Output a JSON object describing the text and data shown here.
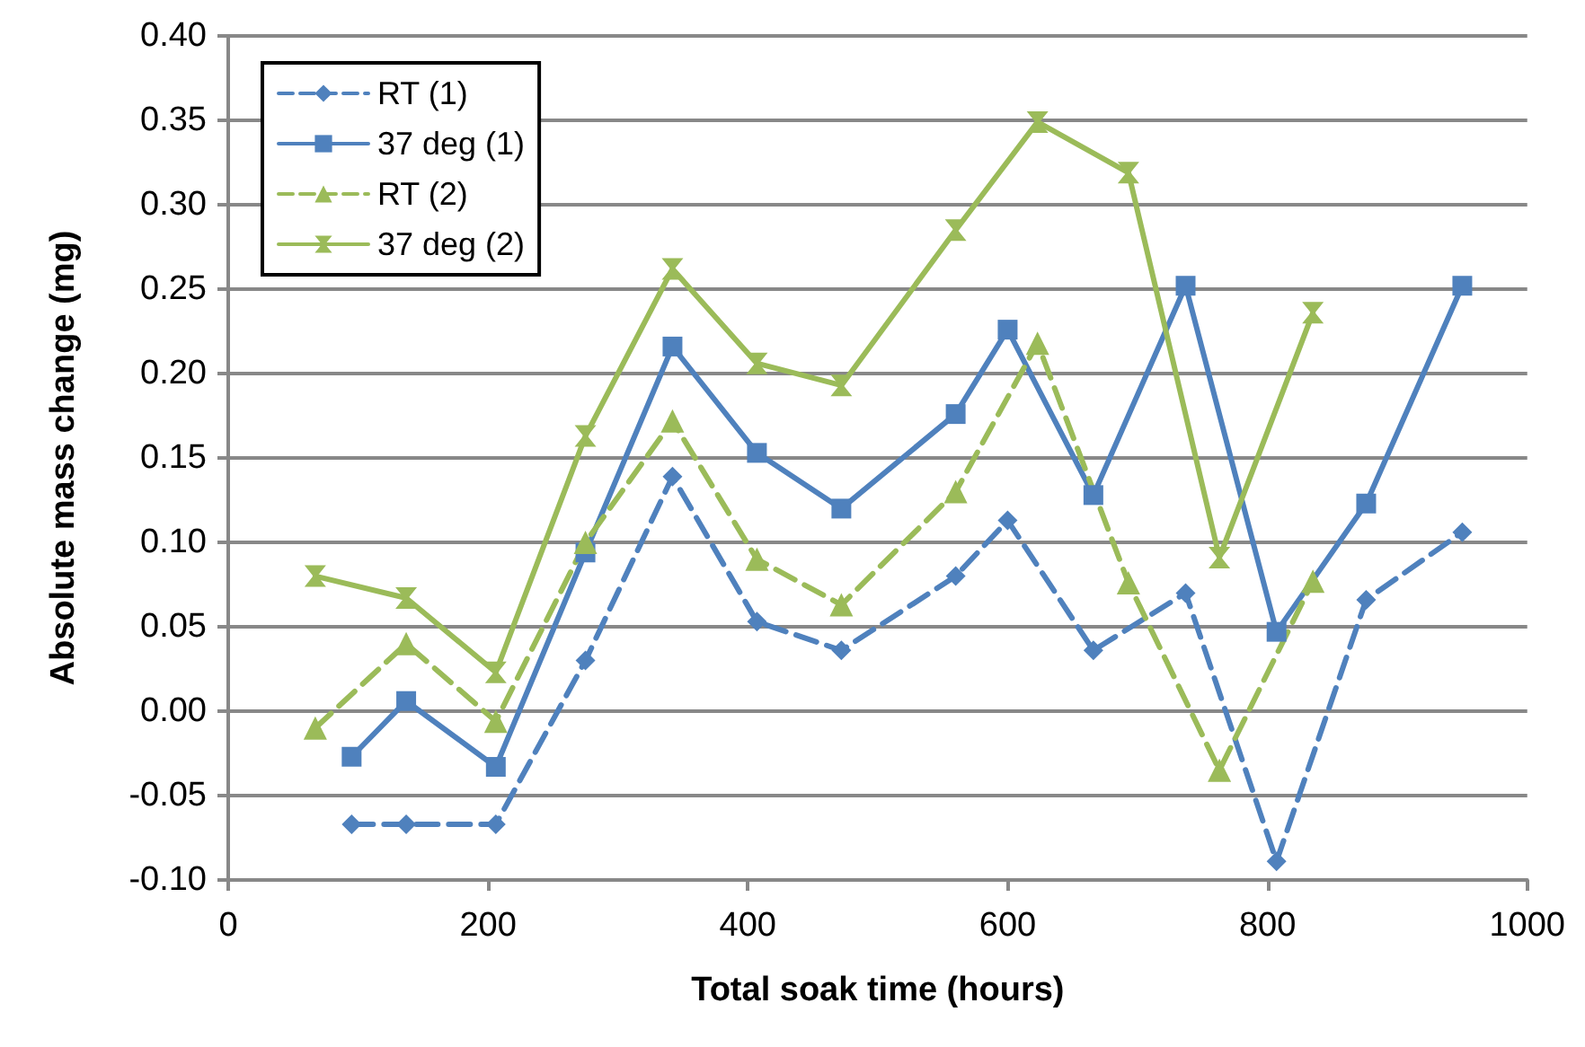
{
  "chart_data": {
    "type": "line",
    "xlabel": "Total soak time (hours)",
    "ylabel": "Absolute mass change (mg)",
    "xlim": [
      0,
      1000
    ],
    "xticks": [
      0,
      200,
      400,
      600,
      800,
      1000
    ],
    "ylim": [
      -0.1,
      0.4
    ],
    "yticks": [
      {
        "value": -0.1,
        "label": "-0.10"
      },
      -0.05,
      {
        "value": 0,
        "label": "0.00"
      },
      0.05,
      {
        "value": 0.1,
        "label": "0.10"
      },
      0.15,
      {
        "value": 0.2,
        "label": "0.20"
      },
      0.25,
      {
        "value": 0.3,
        "label": "0.30"
      },
      0.35,
      {
        "value": 0.4,
        "label": "0.40"
      }
    ],
    "grid": "y",
    "legend": "top left",
    "series": [
      {
        "name": "RT (1)",
        "color": "#4f81bd",
        "marker": "diamond",
        "line_style": "dashed",
        "x": [
          95,
          137,
          206,
          275,
          342,
          407,
          472,
          560,
          600,
          666,
          737,
          807,
          876,
          950
        ],
        "values": [
          -0.067,
          -0.067,
          -0.067,
          0.03,
          0.139,
          0.053,
          0.036,
          0.08,
          0.113,
          0.036,
          0.07,
          -0.089,
          0.066,
          0.106
        ]
      },
      {
        "name": "37 deg (1)",
        "color": "#4f81bd",
        "marker": "square",
        "line_style": "solid",
        "x": [
          95,
          137,
          206,
          275,
          342,
          407,
          472,
          560,
          600,
          666,
          737,
          807,
          876,
          950
        ],
        "values": [
          -0.027,
          0.006,
          -0.033,
          0.094,
          0.216,
          0.153,
          0.12,
          0.176,
          0.226,
          0.128,
          0.252,
          0.047,
          0.123,
          0.252
        ]
      },
      {
        "name": "RT (2)",
        "color": "#9bbb59",
        "marker": "triangle",
        "line_style": "dashed",
        "x": [
          67,
          137,
          206,
          275,
          342,
          407,
          472,
          560,
          623,
          693,
          763,
          835
        ],
        "values": [
          -0.01,
          0.04,
          -0.006,
          0.1,
          0.172,
          0.09,
          0.063,
          0.13,
          0.218,
          0.076,
          -0.035,
          0.077
        ]
      },
      {
        "name": "37 deg (2)",
        "color": "#9bbb59",
        "marker": "star",
        "line_style": "solid",
        "x": [
          67,
          137,
          206,
          275,
          342,
          407,
          472,
          560,
          623,
          693,
          763,
          835
        ],
        "values": [
          0.08,
          0.067,
          0.023,
          0.163,
          0.262,
          0.206,
          0.193,
          0.285,
          0.349,
          0.319,
          0.091,
          0.236
        ]
      }
    ]
  }
}
